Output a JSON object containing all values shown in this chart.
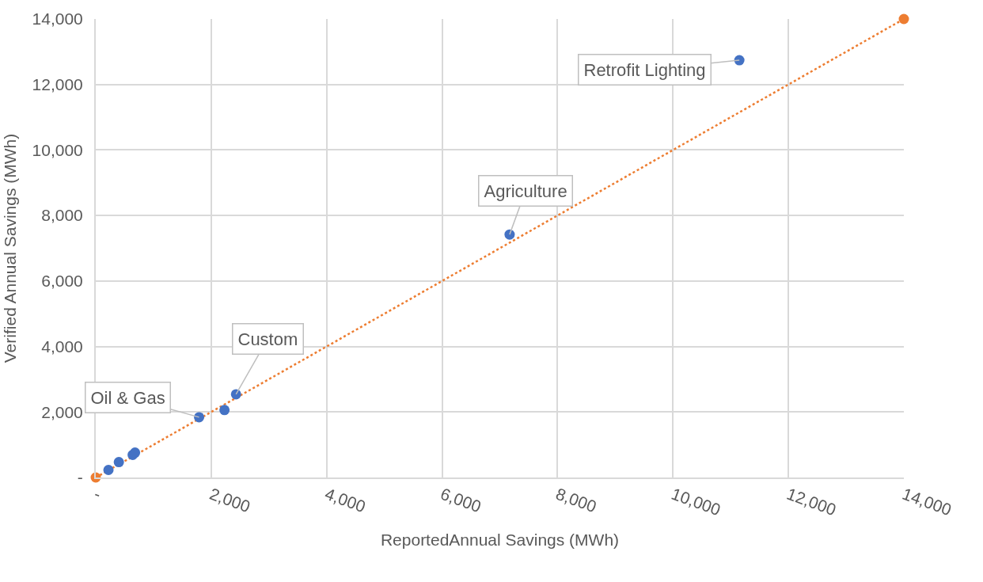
{
  "chart_data": {
    "type": "scatter",
    "xlabel": "ReportedAnnual Savings (MWh)",
    "ylabel": "Verified Annual Savings (MWh)",
    "series": [
      {
        "color": "#4472c4",
        "x": [
          220,
          400,
          640,
          680,
          1790,
          2230,
          2430,
          7170,
          11150
        ],
        "values": [
          230,
          470,
          690,
          760,
          1840,
          2060,
          2540,
          7420,
          12740
        ]
      },
      {
        "type": "line",
        "color": "#ed7d31",
        "line_style": "dotted",
        "x": [
          0,
          14000
        ],
        "values": [
          0,
          14000
        ]
      }
    ],
    "annotations": [
      {
        "text": "Oil & Gas",
        "x": 1790,
        "y": 1840
      },
      {
        "text": "Custom",
        "x": 2430,
        "y": 2540
      },
      {
        "text": "Agriculture",
        "x": 7170,
        "y": 7420
      },
      {
        "text": "Retrofit Lighting",
        "x": 11150,
        "y": 12740
      }
    ],
    "xlim": [
      0,
      14000
    ],
    "ylim": [
      0,
      14000
    ],
    "xticks": [
      {
        "value": 0,
        "label": "-"
      },
      {
        "value": 2000,
        "label": "2,000"
      },
      {
        "value": 4000,
        "label": "4,000"
      },
      {
        "value": 6000,
        "label": "6,000"
      },
      {
        "value": 8000,
        "label": "8,000"
      },
      {
        "value": 10000,
        "label": "10,000"
      },
      {
        "value": 12000,
        "label": "12,000"
      },
      {
        "value": 14000,
        "label": "14,000"
      }
    ],
    "yticks": [
      {
        "value": 0,
        "label": "-"
      },
      {
        "value": 2000,
        "label": "2,000"
      },
      {
        "value": 4000,
        "label": "4,000"
      },
      {
        "value": 6000,
        "label": "6,000"
      },
      {
        "value": 8000,
        "label": "8,000"
      },
      {
        "value": 10000,
        "label": "10,000"
      },
      {
        "value": 12000,
        "label": "12,000"
      },
      {
        "value": 14000,
        "label": "14,000"
      }
    ],
    "grid": true,
    "marker": "circle"
  }
}
